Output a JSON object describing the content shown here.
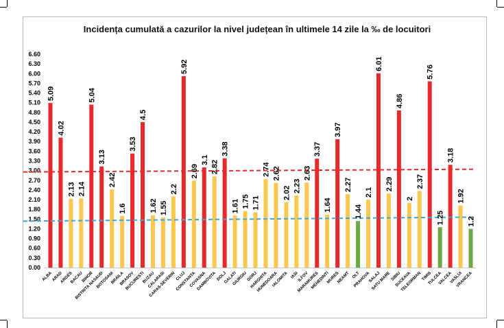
{
  "chart_data": {
    "type": "bar",
    "title": "Incidența cumulată a cazurilor la nivel județean în ultimele 14 zile la ‰ de locuitori",
    "xlabel": "",
    "ylabel": "",
    "ylim": [
      0,
      6.6
    ],
    "yticks": [
      "0.00",
      "0.30",
      "0.60",
      "0.90",
      "1.20",
      "1.50",
      "1.80",
      "2.10",
      "2.40",
      "2.70",
      "3.00",
      "3.30",
      "3.60",
      "3.90",
      "4.20",
      "4.50",
      "4.80",
      "5.10",
      "5.40",
      "5.70",
      "6.00",
      "6.30",
      "6.60"
    ],
    "categories": [
      "ALBA",
      "ARAD",
      "ARGES",
      "BACAU",
      "BIHOR",
      "BISTRITA NASAUD",
      "BOTOSANI",
      "BRAILA",
      "BRASOV",
      "BUCURESTI",
      "BUZAU",
      "CALARASI",
      "CARAS-SEVERIN",
      "CLUJ",
      "CONSTANTA",
      "COVASNA",
      "DAMBOVITA",
      "DOLJ",
      "GALATI",
      "GIURGIU",
      "GORJ",
      "HARGHITA",
      "HUNEDOARA",
      "IALOMITA",
      "IASI",
      "ILFOV",
      "MARAMURES",
      "MEHEDINTI",
      "MURES",
      "NEAMT",
      "OLT",
      "PRAHOVA",
      "SALAJ",
      "SATU MARE",
      "SIBIU",
      "SUCEAVA",
      "TELEORMAN",
      "TIMIS",
      "TULCEA",
      "VALCEA",
      "VASLUI",
      "VRANCEA"
    ],
    "values": [
      5.09,
      4.02,
      2.13,
      2.14,
      5.04,
      3.13,
      2.42,
      1.6,
      3.53,
      4.5,
      1.62,
      1.55,
      2.2,
      5.92,
      2.69,
      3.1,
      2.82,
      3.38,
      1.61,
      1.75,
      1.71,
      2.74,
      2.62,
      2.02,
      2.23,
      2.63,
      3.37,
      1.64,
      3.97,
      2.27,
      1.44,
      2.1,
      6.01,
      2.29,
      4.86,
      2,
      2.37,
      5.76,
      1.25,
      3.18,
      1.92,
      1.2
    ],
    "value_labels": [
      "5.09",
      "4.02",
      "2.13",
      "2.14",
      "5.04",
      "3.13",
      "2.42",
      "1.6",
      "3.53",
      "4.5",
      "1.62",
      "1.55",
      "2.2",
      "5.92",
      "2.69",
      "3.1",
      "2.82",
      "3.38",
      "1.61",
      "1.75",
      "1.71",
      "2.74",
      "2.62",
      "2.02",
      "2.23",
      "2.63",
      "3.37",
      "1.64",
      "3.97",
      "2.27",
      "1.44",
      "2.1",
      "6.01",
      "2.29",
      "4.86",
      "2",
      "2.37",
      "5.76",
      "1.25",
      "3.18",
      "1.92",
      "1.2"
    ],
    "bar_colors": {
      "red": "#e8292b",
      "yellow": "#fcc750",
      "green": "#6aa944"
    },
    "color_rule": "red if value >= 3.0, green if value <= 1.5, otherwise yellow",
    "reference_lines": [
      {
        "value": 3.0,
        "color": "#e8292b",
        "style": "dashed"
      },
      {
        "value": 1.5,
        "color": "#3aa8e0",
        "style": "dashed"
      }
    ],
    "grid": false,
    "legend": "none"
  }
}
